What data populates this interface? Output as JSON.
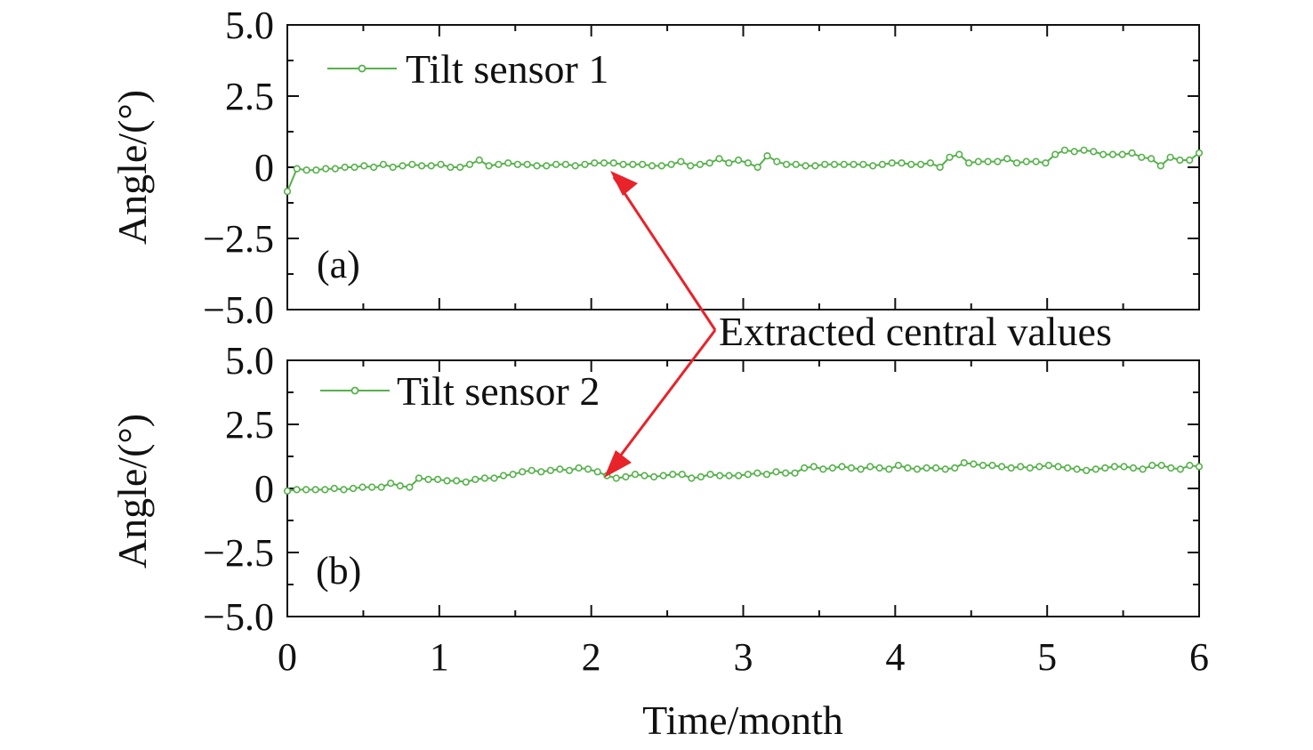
{
  "colors": {
    "series": "#55b14a",
    "annotation": "#e8232a",
    "axis": "#111111",
    "background": "#ffffff"
  },
  "xlabel": "Time/month",
  "annotation": {
    "text": "Extracted central values"
  },
  "chart_data": [
    {
      "type": "line",
      "panel_label": "(a)",
      "ylabel": "Angle/(°)",
      "xlabel": "",
      "xlim": [
        0,
        6
      ],
      "ylim": [
        -5,
        5
      ],
      "xticks": [
        "0",
        "1",
        "2",
        "3",
        "4",
        "5",
        "6"
      ],
      "yticks": [
        "5.0",
        "2.5",
        "0",
        "−2.5",
        "−5.0"
      ],
      "legend_position": "top-left",
      "grid": false,
      "series": [
        {
          "name": "Tilt sensor 1",
          "values": [
            -0.85,
            -0.05,
            -0.1,
            -0.1,
            -0.05,
            -0.05,
            0.0,
            0.0,
            0.05,
            0.0,
            0.1,
            0.0,
            0.05,
            0.1,
            0.05,
            0.05,
            0.1,
            0.0,
            0.0,
            0.1,
            0.25,
            0.05,
            0.1,
            0.15,
            0.1,
            0.1,
            0.05,
            0.05,
            0.1,
            0.1,
            0.05,
            0.1,
            0.15,
            0.15,
            0.15,
            0.1,
            0.1,
            0.1,
            0.05,
            0.05,
            0.1,
            0.2,
            0.05,
            0.1,
            0.15,
            0.3,
            0.15,
            0.25,
            0.15,
            0.0,
            0.4,
            0.2,
            0.1,
            0.1,
            0.05,
            0.05,
            0.1,
            0.1,
            0.1,
            0.1,
            0.1,
            0.05,
            0.1,
            0.15,
            0.15,
            0.1,
            0.1,
            0.15,
            0.0,
            0.35,
            0.45,
            0.15,
            0.2,
            0.2,
            0.2,
            0.3,
            0.15,
            0.2,
            0.2,
            0.15,
            0.45,
            0.6,
            0.55,
            0.6,
            0.55,
            0.45,
            0.45,
            0.45,
            0.5,
            0.35,
            0.3,
            0.05,
            0.35,
            0.25,
            0.25,
            0.5
          ]
        }
      ]
    },
    {
      "type": "line",
      "panel_label": "(b)",
      "ylabel": "Angle/(°)",
      "xlabel": "Time/month",
      "xlim": [
        0,
        6
      ],
      "ylim": [
        -5,
        5
      ],
      "xticks": [
        "0",
        "1",
        "2",
        "3",
        "4",
        "5",
        "6"
      ],
      "yticks": [
        "5.0",
        "2.5",
        "0",
        "−2.5",
        "−5.0"
      ],
      "legend_position": "top-left",
      "grid": false,
      "series": [
        {
          "name": "Tilt sensor 2",
          "values": [
            -0.1,
            -0.05,
            -0.05,
            -0.05,
            -0.05,
            0.0,
            -0.05,
            0.0,
            0.05,
            0.05,
            0.05,
            0.2,
            0.1,
            0.05,
            0.4,
            0.35,
            0.35,
            0.3,
            0.3,
            0.25,
            0.35,
            0.4,
            0.4,
            0.5,
            0.55,
            0.65,
            0.7,
            0.65,
            0.7,
            0.75,
            0.7,
            0.8,
            0.75,
            0.65,
            0.5,
            0.4,
            0.45,
            0.55,
            0.5,
            0.45,
            0.5,
            0.55,
            0.55,
            0.4,
            0.45,
            0.55,
            0.5,
            0.5,
            0.5,
            0.55,
            0.6,
            0.55,
            0.65,
            0.6,
            0.6,
            0.8,
            0.85,
            0.75,
            0.8,
            0.85,
            0.8,
            0.75,
            0.85,
            0.8,
            0.75,
            0.9,
            0.8,
            0.75,
            0.8,
            0.8,
            0.75,
            0.8,
            1.0,
            0.95,
            0.9,
            0.9,
            0.85,
            0.8,
            0.85,
            0.8,
            0.85,
            0.9,
            0.85,
            0.8,
            0.75,
            0.7,
            0.75,
            0.8,
            0.85,
            0.85,
            0.8,
            0.75,
            0.9,
            0.9,
            0.8,
            0.75,
            0.9,
            0.85
          ]
        }
      ]
    }
  ]
}
